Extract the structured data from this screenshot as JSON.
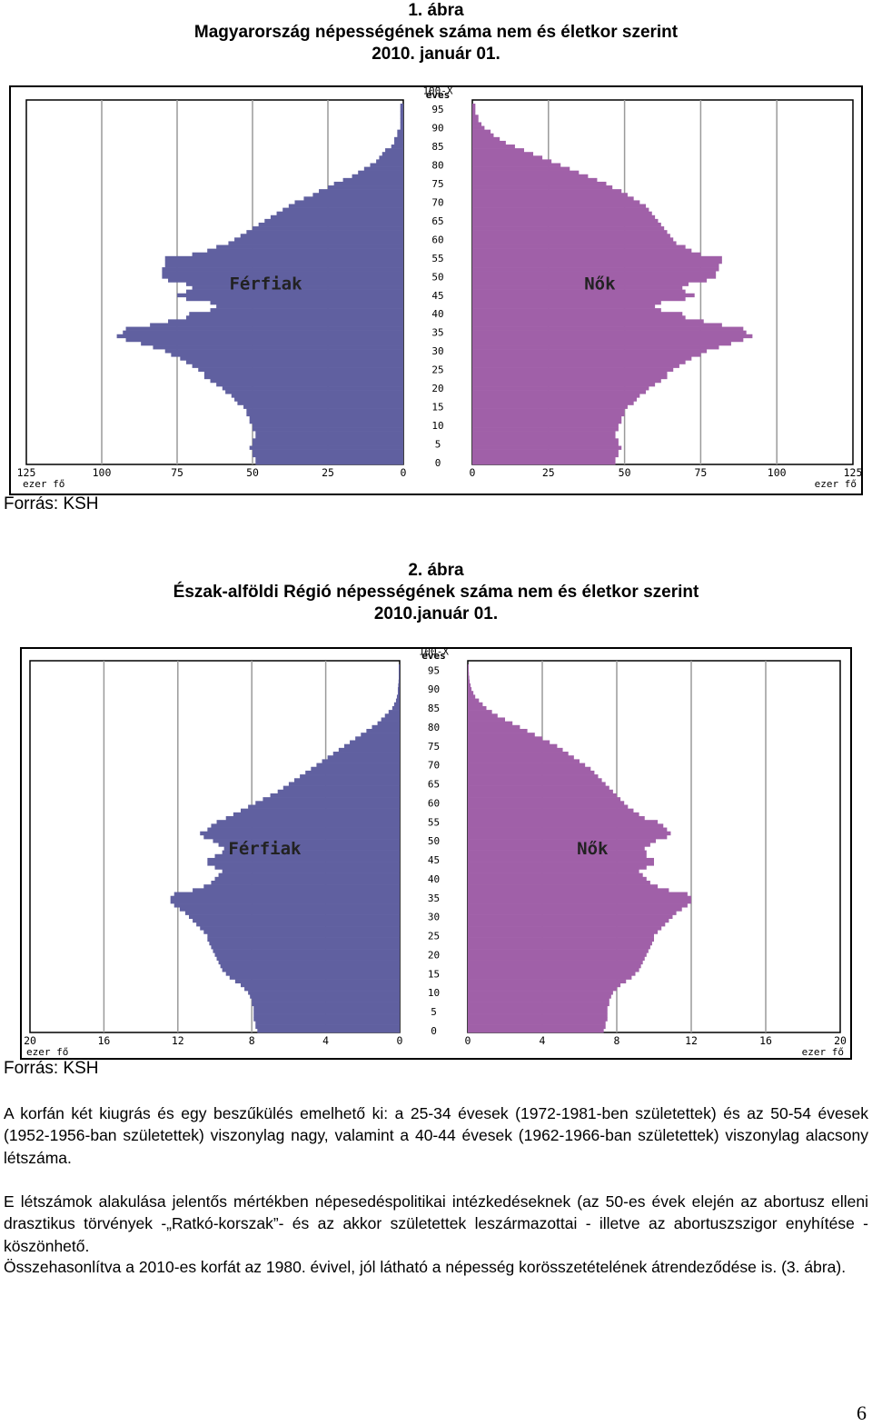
{
  "figure1": {
    "title_line1": "1. ábra",
    "title_line2": "Magyarország népességének száma nem és életkor szerint",
    "title_line3": "2010. január 01.",
    "source": "Forrás: KSH"
  },
  "figure2": {
    "title_line1": "2. ábra",
    "title_line2": "Észak-alföldi Régió népességének száma nem és életkor szerint",
    "title_line3": "2010.január 01.",
    "source": "Forrás: KSH"
  },
  "text": {
    "paragraph1": "A korfán két kiugrás és egy beszűkülés emelhető ki: a 25-34 évesek (1972-1981-ben születettek) és az 50-54 évesek (1952-1956-ban születettek) viszonylag nagy, valamint a 40-44 évesek (1962-1966-ban születettek) viszonylag alacsony létszáma.",
    "paragraph2": "E létszámok alakulása jelentős mértékben népesedéspolitikai intézkedéseknek (az 50-es évek elején az abortusz elleni drasztikus törvények -„Ratkó-korszak”- és az akkor születettek leszármazottai - illetve az abortuszszigor enyhítése - köszönhető.",
    "paragraph3": "Összehasonlítva a 2010-es korfát az 1980. évivel, jól látható a népesség korösszetételének átrendeződése is. (3. ábra)."
  },
  "page_number": "6",
  "colors": {
    "male": "#6060a0",
    "female": "#a060a8",
    "grid": "#9a9a9a"
  },
  "chart_data": [
    {
      "type": "population-pyramid",
      "age_axis_label": "éves",
      "age_ticks": [
        "0",
        "5",
        "10",
        "15",
        "20",
        "25",
        "30",
        "35",
        "40",
        "45",
        "50",
        "55",
        "60",
        "65",
        "70",
        "75",
        "80",
        "85",
        "90",
        "95",
        "100-X"
      ],
      "x_ticks": [
        "0",
        "25",
        "50",
        "75",
        "100",
        "125"
      ],
      "xlim": [
        0,
        125
      ],
      "unit_label": "ezer fő",
      "series": [
        {
          "name": "Férfiak",
          "values": [
            49,
            49,
            50,
            50,
            51,
            50,
            50,
            49,
            49,
            50,
            50,
            51,
            51,
            52,
            52,
            53,
            55,
            56,
            57,
            59,
            60,
            62,
            64,
            66,
            66,
            68,
            70,
            72,
            74,
            77,
            79,
            83,
            87,
            92,
            95,
            93,
            92,
            84,
            78,
            72,
            71,
            64,
            62,
            64,
            72,
            75,
            72,
            70,
            72,
            78,
            80,
            80,
            80,
            79,
            79,
            79,
            70,
            65,
            62,
            58,
            56,
            54,
            52,
            50,
            48,
            46,
            44,
            42,
            40,
            38,
            36,
            33,
            30,
            28,
            25,
            23,
            20,
            17,
            15,
            13,
            11,
            9,
            8,
            7,
            6,
            4,
            3,
            3,
            2,
            2,
            1,
            1,
            1,
            1,
            1,
            1,
            1
          ]
        },
        {
          "name": "Nők",
          "values": [
            47,
            47,
            48,
            48,
            49,
            48,
            48,
            47,
            47,
            48,
            48,
            49,
            49,
            50,
            50,
            51,
            53,
            54,
            55,
            57,
            58,
            60,
            62,
            64,
            64,
            66,
            68,
            70,
            72,
            75,
            77,
            81,
            85,
            89,
            92,
            90,
            89,
            82,
            76,
            70,
            69,
            62,
            60,
            62,
            70,
            73,
            70,
            69,
            71,
            77,
            80,
            80,
            81,
            81,
            82,
            82,
            75,
            72,
            70,
            67,
            66,
            65,
            64,
            63,
            62,
            61,
            60,
            59,
            58,
            57,
            55,
            53,
            51,
            49,
            46,
            44,
            41,
            38,
            35,
            32,
            29,
            26,
            23,
            20,
            17,
            14,
            11,
            9,
            7,
            6,
            4,
            3,
            2,
            2,
            1,
            1,
            1
          ]
        }
      ]
    },
    {
      "type": "population-pyramid",
      "age_axis_label": "éves",
      "age_ticks": [
        "0",
        "5",
        "10",
        "15",
        "20",
        "25",
        "30",
        "35",
        "40",
        "45",
        "50",
        "55",
        "60",
        "65",
        "70",
        "75",
        "80",
        "85",
        "90",
        "95",
        "100-X"
      ],
      "x_ticks": [
        "0",
        "4",
        "8",
        "12",
        "16",
        "20"
      ],
      "xlim": [
        0,
        20
      ],
      "unit_label": "ezer fő",
      "series": [
        {
          "name": "Férfiak",
          "values": [
            7.7,
            7.8,
            7.8,
            7.9,
            7.9,
            7.9,
            7.9,
            8.0,
            8.0,
            8.1,
            8.2,
            8.4,
            8.6,
            8.9,
            9.2,
            9.4,
            9.6,
            9.7,
            9.8,
            9.9,
            10.0,
            10.1,
            10.2,
            10.3,
            10.4,
            10.4,
            10.6,
            10.8,
            11.0,
            11.2,
            11.4,
            11.6,
            11.9,
            12.2,
            12.4,
            12.4,
            12.2,
            11.2,
            10.6,
            10.2,
            10.0,
            9.8,
            9.6,
            10.0,
            10.4,
            10.4,
            10.0,
            9.6,
            9.5,
            9.8,
            10.1,
            10.6,
            10.8,
            10.4,
            10.2,
            9.9,
            9.4,
            9.0,
            8.6,
            8.2,
            7.8,
            7.4,
            7.0,
            6.6,
            6.3,
            6.0,
            5.7,
            5.4,
            5.1,
            4.8,
            4.5,
            4.2,
            3.9,
            3.6,
            3.3,
            3.0,
            2.7,
            2.4,
            2.1,
            1.8,
            1.5,
            1.2,
            1.0,
            0.8,
            0.6,
            0.4,
            0.3,
            0.2,
            0.15,
            0.1,
            0.1,
            0.08,
            0.06,
            0.05,
            0.05,
            0.05,
            0.05
          ]
        },
        {
          "name": "Nők",
          "values": [
            7.3,
            7.4,
            7.4,
            7.5,
            7.5,
            7.5,
            7.5,
            7.6,
            7.6,
            7.7,
            7.8,
            8.0,
            8.2,
            8.5,
            8.8,
            9.0,
            9.2,
            9.3,
            9.4,
            9.5,
            9.6,
            9.7,
            9.8,
            9.9,
            10.0,
            10.0,
            10.2,
            10.4,
            10.6,
            10.8,
            11.0,
            11.2,
            11.5,
            11.8,
            12.0,
            12.0,
            11.8,
            10.8,
            10.2,
            9.8,
            9.6,
            9.4,
            9.2,
            9.6,
            10.0,
            10.0,
            9.6,
            9.6,
            9.5,
            9.8,
            10.1,
            10.7,
            10.9,
            10.7,
            10.5,
            10.2,
            9.5,
            9.2,
            8.9,
            8.6,
            8.4,
            8.2,
            8.0,
            7.8,
            7.6,
            7.4,
            7.2,
            7.0,
            6.8,
            6.6,
            6.3,
            6.0,
            5.7,
            5.4,
            5.1,
            4.8,
            4.4,
            4.0,
            3.6,
            3.2,
            2.8,
            2.4,
            2.0,
            1.6,
            1.3,
            1.0,
            0.8,
            0.6,
            0.4,
            0.3,
            0.2,
            0.15,
            0.1,
            0.08,
            0.06,
            0.05,
            0.05
          ]
        }
      ]
    }
  ]
}
